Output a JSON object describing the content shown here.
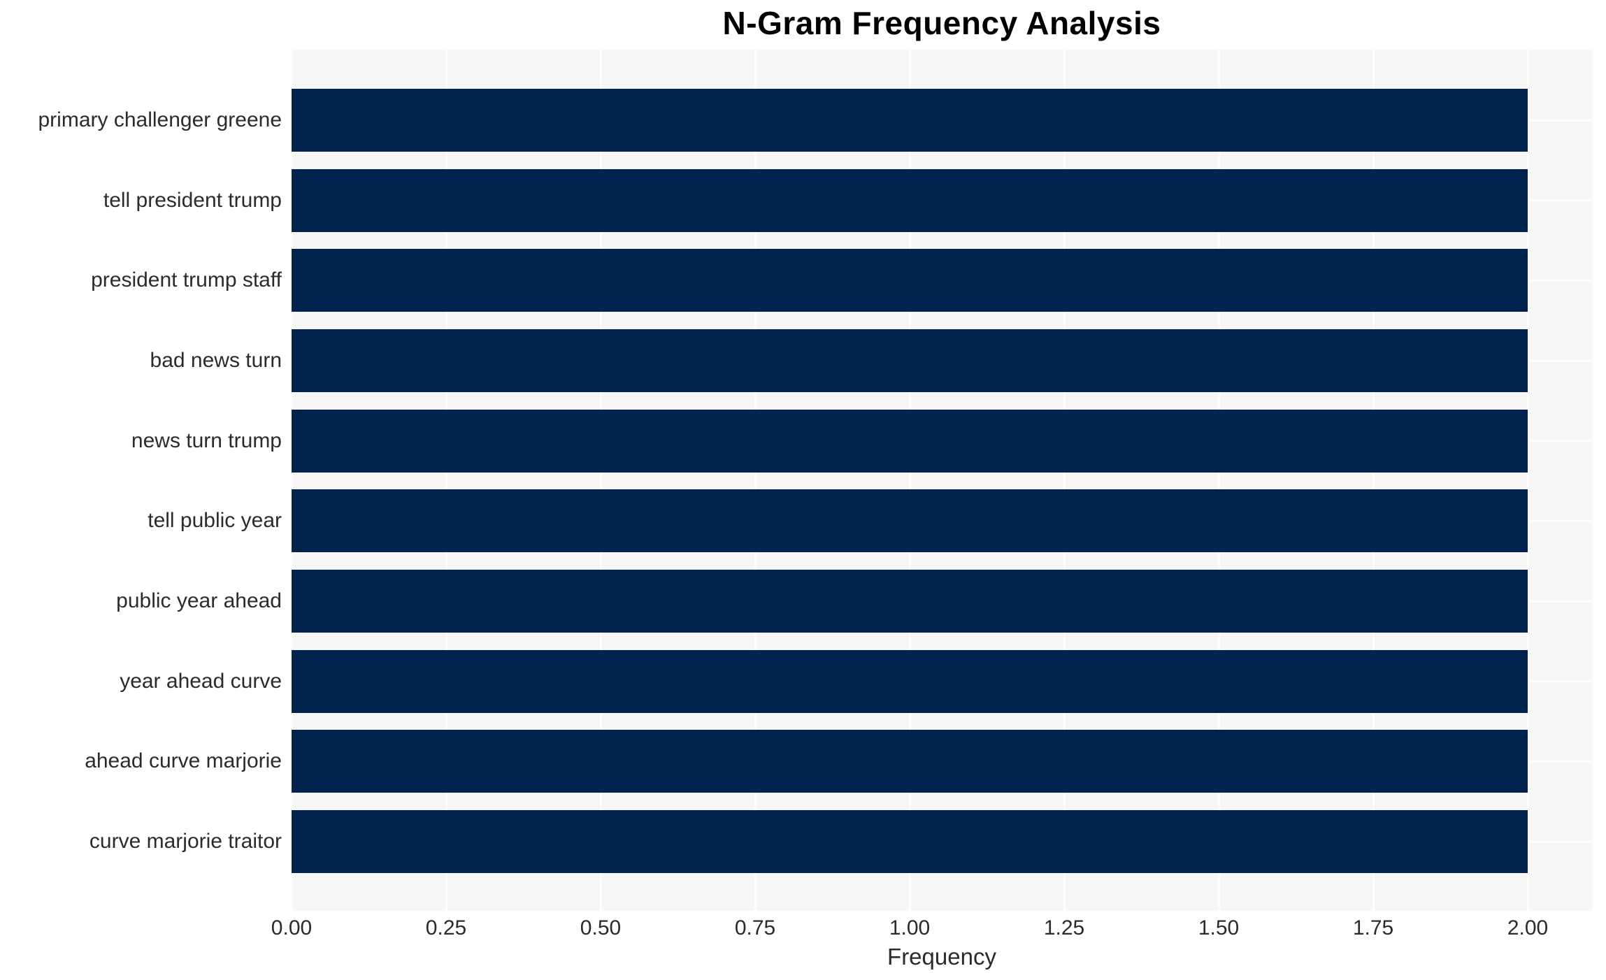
{
  "chart_data": {
    "type": "bar",
    "orientation": "horizontal",
    "title": "N-Gram Frequency Analysis",
    "xlabel": "Frequency",
    "ylabel": "",
    "categories": [
      "primary challenger greene",
      "tell president trump",
      "president trump staff",
      "bad news turn",
      "news turn trump",
      "tell public year",
      "public year ahead",
      "year ahead curve",
      "ahead curve marjorie",
      "curve marjorie traitor"
    ],
    "values": [
      2,
      2,
      2,
      2,
      2,
      2,
      2,
      2,
      2,
      2
    ],
    "xticks": [
      {
        "value": 0.0,
        "label": "0.00"
      },
      {
        "value": 0.25,
        "label": "0.25"
      },
      {
        "value": 0.5,
        "label": "0.50"
      },
      {
        "value": 0.75,
        "label": "0.75"
      },
      {
        "value": 1.0,
        "label": "1.00"
      },
      {
        "value": 1.25,
        "label": "1.25"
      },
      {
        "value": 1.5,
        "label": "1.50"
      },
      {
        "value": 1.75,
        "label": "1.75"
      },
      {
        "value": 2.0,
        "label": "2.00"
      }
    ],
    "xlim": [
      0,
      2.104
    ],
    "grid": true,
    "legend": null,
    "colors": {
      "bar": "#02234E",
      "plot_background": "#F7F7F7",
      "gridline": "#FFFFFF",
      "title_text": "#000000",
      "tick_text": "#2B2B2B"
    }
  }
}
